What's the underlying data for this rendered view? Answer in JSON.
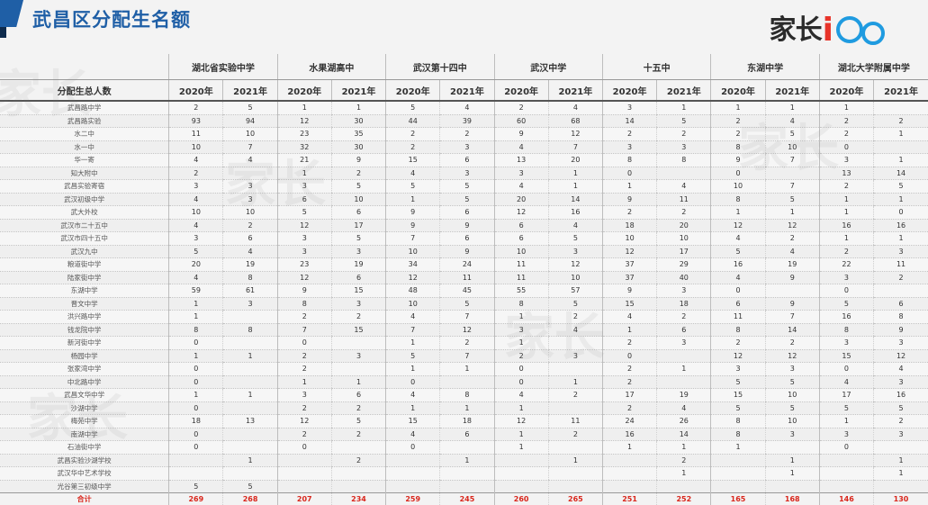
{
  "title": "武昌区分配生名额",
  "logo": {
    "left": "家长",
    "i": "i",
    "right": ""
  },
  "header": {
    "row_label": "分配生总人数",
    "schools": [
      "湖北省实验中学",
      "水果湖高中",
      "武汉第十四中",
      "武汉中学",
      "十五中",
      "东湖中学",
      "湖北大学附属中学"
    ],
    "years": [
      "2020年",
      "2021年"
    ]
  },
  "rows": [
    {
      "name": "武昌路中学",
      "v": [
        "2",
        "5",
        "1",
        "1",
        "5",
        "4",
        "2",
        "4",
        "3",
        "1",
        "1",
        "1",
        "1",
        ""
      ]
    },
    {
      "name": "武昌路实验",
      "v": [
        "93",
        "94",
        "12",
        "30",
        "44",
        "39",
        "60",
        "68",
        "14",
        "5",
        "2",
        "4",
        "2",
        "2"
      ]
    },
    {
      "name": "水二中",
      "v": [
        "11",
        "10",
        "23",
        "35",
        "2",
        "2",
        "9",
        "12",
        "2",
        "2",
        "2",
        "5",
        "2",
        "1"
      ]
    },
    {
      "name": "水一中",
      "v": [
        "10",
        "7",
        "32",
        "30",
        "2",
        "3",
        "4",
        "7",
        "3",
        "3",
        "8",
        "10",
        "0",
        ""
      ]
    },
    {
      "name": "华一寄",
      "v": [
        "4",
        "4",
        "21",
        "9",
        "15",
        "6",
        "13",
        "20",
        "8",
        "8",
        "9",
        "7",
        "3",
        "1"
      ]
    },
    {
      "name": "知大附中",
      "v": [
        "2",
        "",
        "1",
        "2",
        "4",
        "3",
        "3",
        "1",
        "0",
        "",
        "0",
        "",
        "13",
        "14"
      ]
    },
    {
      "name": "武昌实验寄宿",
      "v": [
        "3",
        "3",
        "3",
        "5",
        "5",
        "5",
        "4",
        "1",
        "1",
        "4",
        "10",
        "7",
        "2",
        "5"
      ]
    },
    {
      "name": "武汉初级中学",
      "v": [
        "4",
        "3",
        "6",
        "10",
        "1",
        "5",
        "20",
        "14",
        "9",
        "11",
        "8",
        "5",
        "1",
        "1"
      ]
    },
    {
      "name": "武大外校",
      "v": [
        "10",
        "10",
        "5",
        "6",
        "9",
        "6",
        "12",
        "16",
        "2",
        "2",
        "1",
        "1",
        "1",
        "0"
      ]
    },
    {
      "name": "武汉市二十五中",
      "v": [
        "4",
        "2",
        "12",
        "17",
        "9",
        "9",
        "6",
        "4",
        "18",
        "20",
        "12",
        "12",
        "16",
        "16"
      ]
    },
    {
      "name": "武汉市四十五中",
      "v": [
        "3",
        "6",
        "3",
        "5",
        "7",
        "6",
        "6",
        "5",
        "10",
        "10",
        "4",
        "2",
        "1",
        "1"
      ]
    },
    {
      "name": "武汉九中",
      "v": [
        "5",
        "4",
        "3",
        "3",
        "10",
        "9",
        "10",
        "3",
        "12",
        "17",
        "5",
        "4",
        "2",
        "3"
      ]
    },
    {
      "name": "粮道街中学",
      "v": [
        "20",
        "19",
        "23",
        "19",
        "34",
        "24",
        "11",
        "12",
        "37",
        "29",
        "16",
        "19",
        "22",
        "11"
      ]
    },
    {
      "name": "陆家街中学",
      "v": [
        "4",
        "8",
        "12",
        "6",
        "12",
        "11",
        "11",
        "10",
        "37",
        "40",
        "4",
        "9",
        "3",
        "2"
      ]
    },
    {
      "name": "东湖中学",
      "v": [
        "59",
        "61",
        "9",
        "15",
        "48",
        "45",
        "55",
        "57",
        "9",
        "3",
        "0",
        "",
        "0",
        ""
      ]
    },
    {
      "name": "晋文中学",
      "v": [
        "1",
        "3",
        "8",
        "3",
        "10",
        "5",
        "8",
        "5",
        "15",
        "18",
        "6",
        "9",
        "5",
        "6"
      ]
    },
    {
      "name": "洪兴路中学",
      "v": [
        "1",
        "",
        "2",
        "2",
        "4",
        "7",
        "1",
        "2",
        "4",
        "2",
        "11",
        "7",
        "16",
        "8"
      ]
    },
    {
      "name": "钱龙院中学",
      "v": [
        "8",
        "8",
        "7",
        "15",
        "7",
        "12",
        "3",
        "4",
        "1",
        "6",
        "8",
        "14",
        "8",
        "9"
      ]
    },
    {
      "name": "新河街中学",
      "v": [
        "0",
        "",
        "0",
        "",
        "1",
        "2",
        "1",
        "",
        "2",
        "3",
        "2",
        "2",
        "3",
        "3"
      ]
    },
    {
      "name": "杨园中学",
      "v": [
        "1",
        "1",
        "2",
        "3",
        "5",
        "7",
        "2",
        "3",
        "0",
        "",
        "12",
        "12",
        "15",
        "12"
      ]
    },
    {
      "name": "张家湾中学",
      "v": [
        "0",
        "",
        "2",
        "",
        "1",
        "1",
        "0",
        "",
        "2",
        "1",
        "3",
        "3",
        "0",
        "4"
      ]
    },
    {
      "name": "中北路中学",
      "v": [
        "0",
        "",
        "1",
        "1",
        "0",
        "",
        "0",
        "1",
        "2",
        "",
        "5",
        "5",
        "4",
        "3"
      ]
    },
    {
      "name": "武昌文华中学",
      "v": [
        "1",
        "1",
        "3",
        "6",
        "4",
        "8",
        "4",
        "2",
        "17",
        "19",
        "15",
        "10",
        "17",
        "16"
      ]
    },
    {
      "name": "沙湖中学",
      "v": [
        "0",
        "",
        "2",
        "2",
        "1",
        "1",
        "1",
        "",
        "2",
        "4",
        "5",
        "5",
        "5",
        "5"
      ]
    },
    {
      "name": "梅苑中学",
      "v": [
        "18",
        "13",
        "12",
        "5",
        "15",
        "18",
        "12",
        "11",
        "24",
        "26",
        "8",
        "10",
        "1",
        "2"
      ]
    },
    {
      "name": "南湖中学",
      "v": [
        "0",
        "",
        "2",
        "2",
        "4",
        "6",
        "1",
        "2",
        "16",
        "14",
        "8",
        "3",
        "3",
        "3"
      ]
    },
    {
      "name": "石油街中学",
      "v": [
        "0",
        "",
        "0",
        "",
        "0",
        "",
        "1",
        "",
        "1",
        "1",
        "1",
        "",
        "0",
        ""
      ]
    },
    {
      "name": "武昌实验沙湖学校",
      "v": [
        "",
        "1",
        "",
        "2",
        "",
        "1",
        "",
        "1",
        "",
        "2",
        "",
        "1",
        "",
        "1"
      ]
    },
    {
      "name": "武汉华中艺术学校",
      "v": [
        "",
        "",
        "",
        "",
        "",
        "",
        "",
        "",
        "",
        "1",
        "",
        "1",
        "",
        "1"
      ]
    },
    {
      "name": "光谷第三初级中学",
      "v": [
        "5",
        "5",
        "",
        "",
        "",
        "",
        "",
        "",
        "",
        "",
        "",
        "",
        "",
        ""
      ]
    }
  ],
  "total": {
    "name": "合计",
    "v": [
      "269",
      "268",
      "207",
      "234",
      "259",
      "245",
      "260",
      "265",
      "251",
      "252",
      "165",
      "168",
      "146",
      "130"
    ]
  }
}
